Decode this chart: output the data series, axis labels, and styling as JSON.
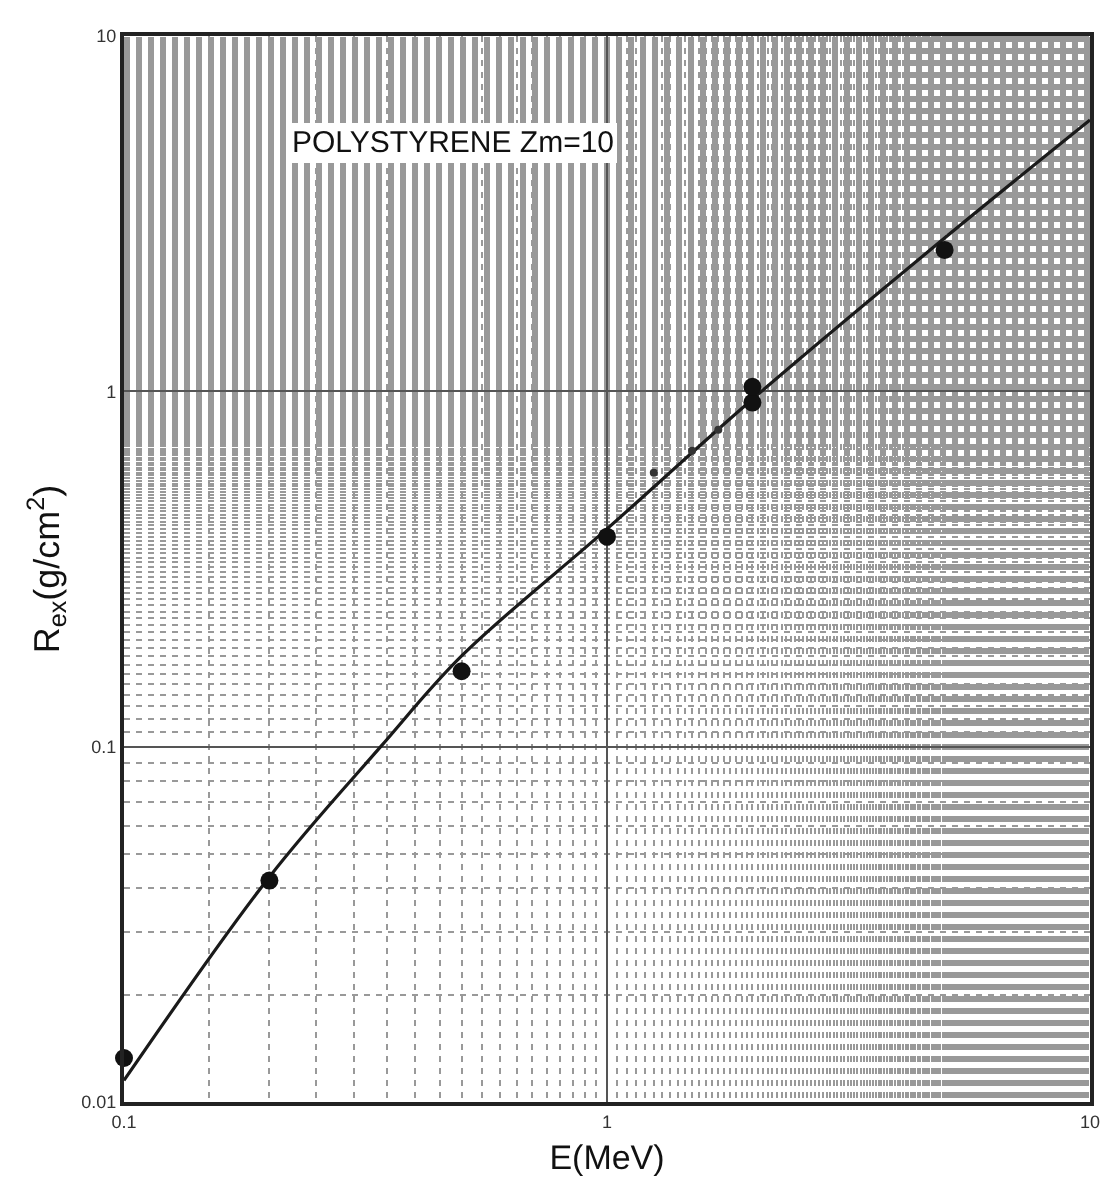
{
  "chart_data": {
    "type": "line",
    "xlabel": "E(MeV)",
    "ylabel": "R$_{ex}$(g/cm$^{2}$)",
    "annotations": [
      "POLYSTYRENE Zm=10"
    ],
    "log": "xy",
    "grid": true,
    "xlim": [
      0.1,
      10
    ],
    "xticks": [
      0.1,
      1,
      10
    ],
    "ylim": [
      0.01,
      10
    ],
    "yticks": [
      0.01,
      0.1,
      1,
      10
    ],
    "series": [
      {
        "color": "#1a1a1a",
        "marker": "none",
        "line_style": "solid",
        "x": [
          0.1,
          0.2,
          0.34,
          0.5,
          1,
          2,
          5,
          10
        ],
        "values": [
          0.0115,
          0.043,
          0.1,
          0.18,
          0.41,
          0.95,
          2.7,
          5.8
        ]
      },
      {
        "type": "scatter",
        "color": "#111111",
        "marker": "circle",
        "x": [
          0.1,
          0.2,
          0.5,
          1,
          2,
          2,
          5
        ],
        "values": [
          0.0133,
          0.042,
          0.163,
          0.39,
          0.93,
          1.03,
          2.5
        ]
      },
      {
        "type": "scatter",
        "color": "#333333",
        "marker": "circle",
        "x": [
          1.25,
          1.5,
          1.7
        ],
        "values": [
          0.59,
          0.68,
          0.78
        ]
      }
    ]
  }
}
